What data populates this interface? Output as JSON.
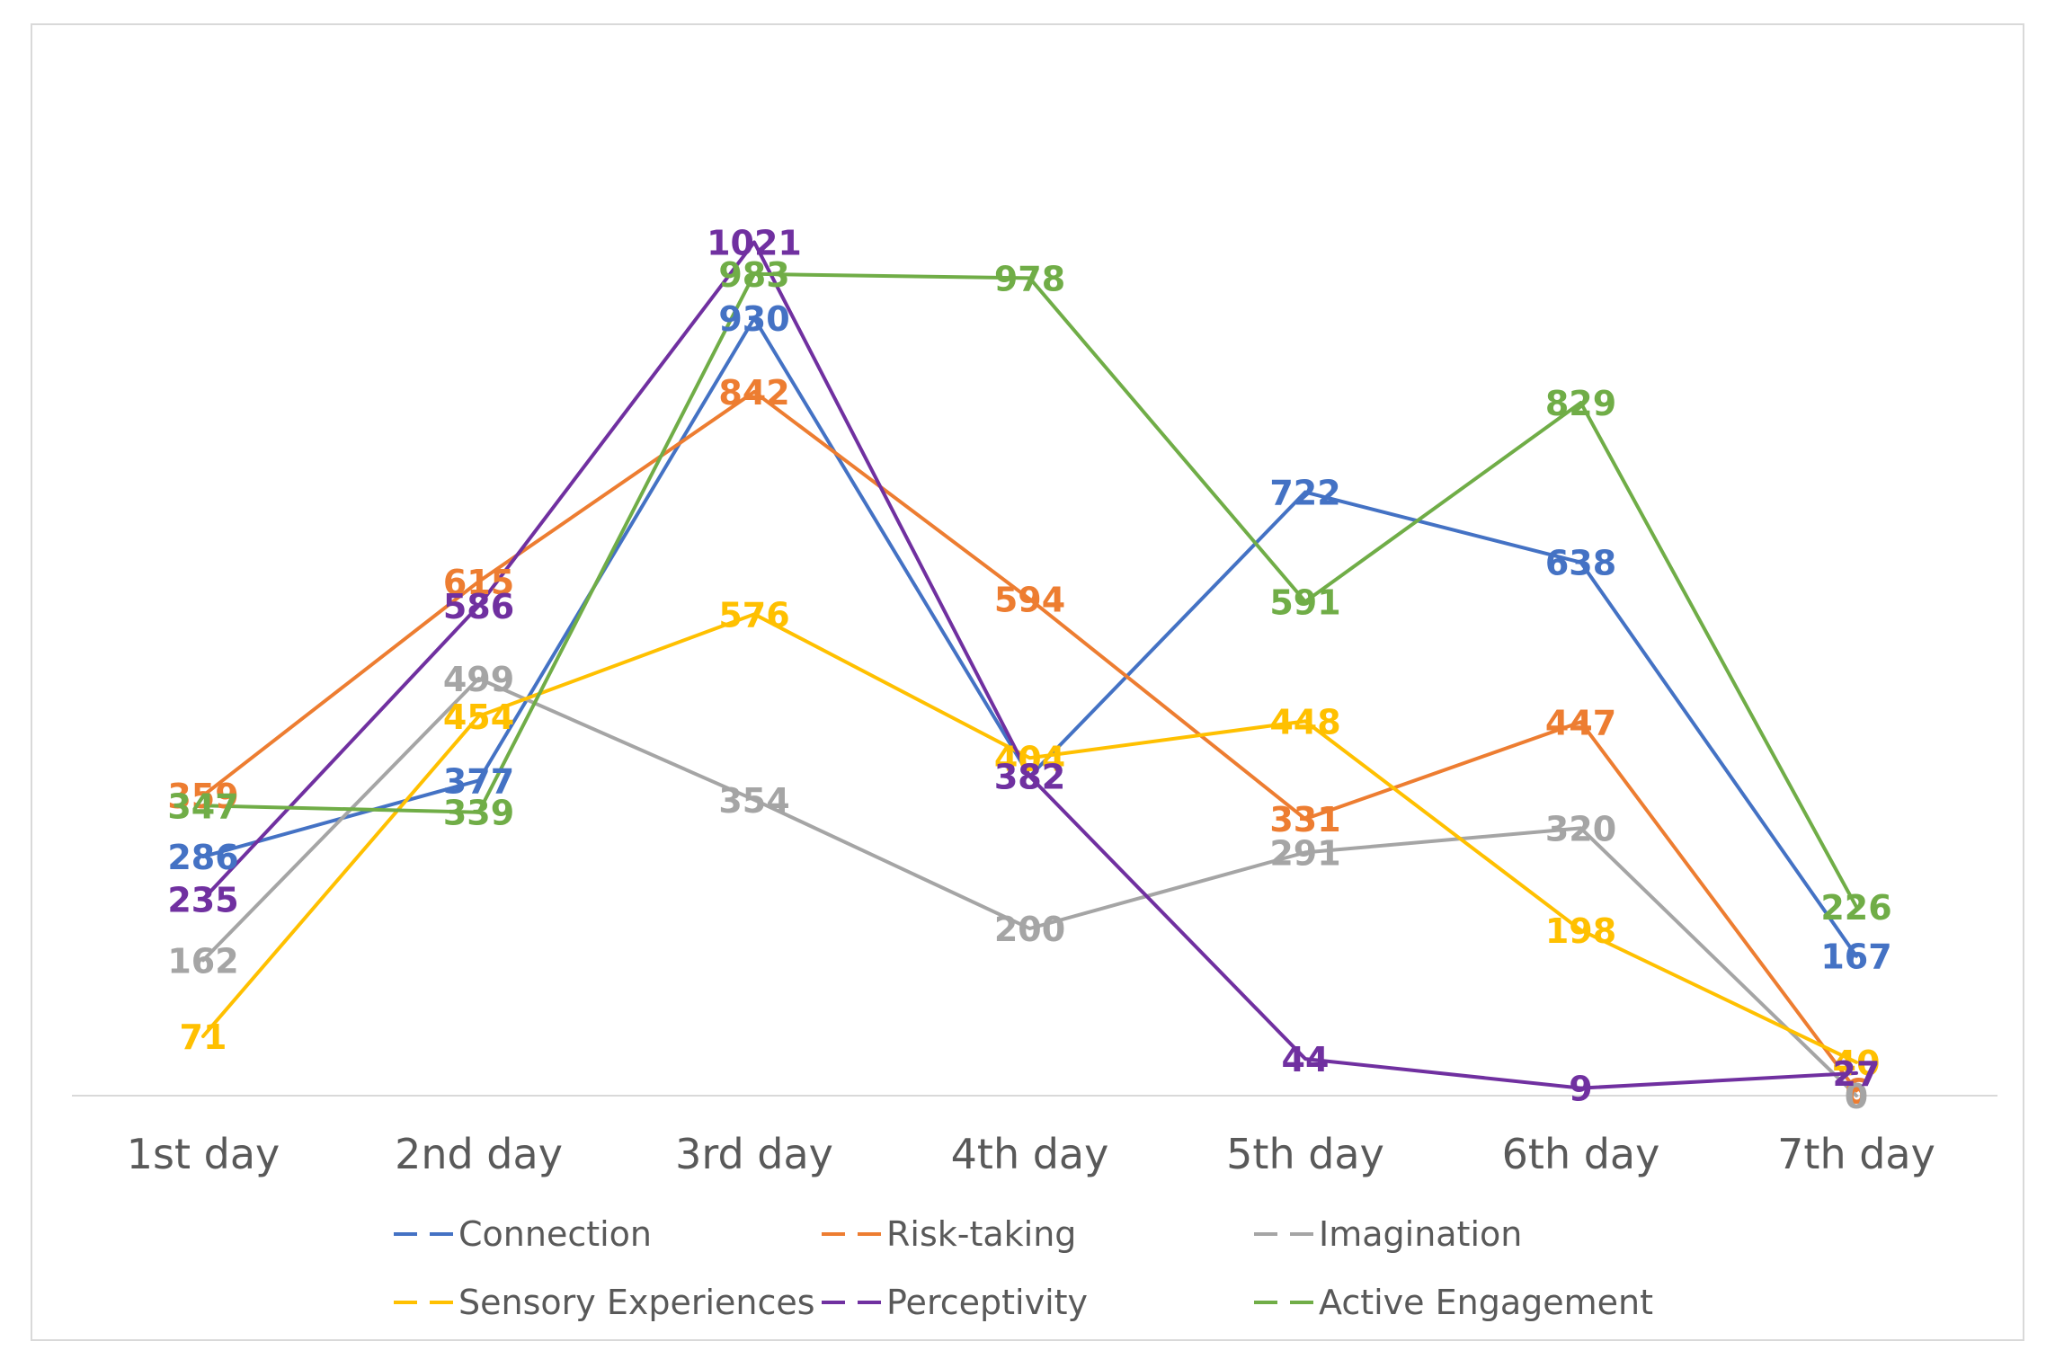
{
  "chart_data": {
    "type": "line",
    "title": "",
    "xlabel": "",
    "ylabel": "",
    "ylim": [
      0,
      1100
    ],
    "grid": false,
    "legend_position": "bottom",
    "categories": [
      "1st day",
      "2nd day",
      "3rd day",
      "4th day",
      "5th day",
      "6th day",
      "7th day"
    ],
    "series": [
      {
        "name": "Connection",
        "color": "#4472c4",
        "values": [
          286,
          377,
          930,
          382,
          722,
          638,
          167
        ]
      },
      {
        "name": "Risk-taking",
        "color": "#ed7d31",
        "values": [
          359,
          615,
          842,
          594,
          331,
          447,
          6
        ]
      },
      {
        "name": "Imagination",
        "color": "#a5a5a5",
        "values": [
          162,
          499,
          354,
          200,
          291,
          320,
          0
        ]
      },
      {
        "name": "Sensory Experiences",
        "color": "#ffc000",
        "values": [
          71,
          454,
          576,
          404,
          448,
          198,
          40
        ]
      },
      {
        "name": "Perceptivity",
        "color": "#7030a0",
        "values": [
          235,
          586,
          1021,
          382,
          44,
          9,
          27
        ]
      },
      {
        "name": "Active Engagement",
        "color": "#70ad47",
        "values": [
          347,
          339,
          983,
          978,
          591,
          829,
          226
        ]
      }
    ]
  }
}
